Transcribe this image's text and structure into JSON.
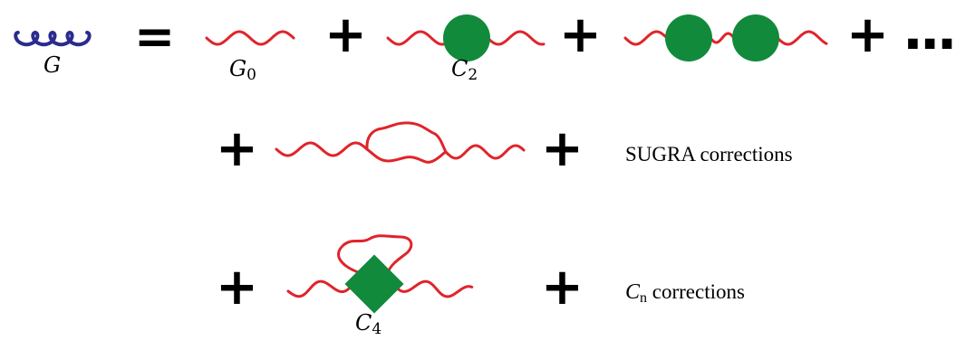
{
  "labels": {
    "full_propagator": "G",
    "free_propagator": "G",
    "free_propagator_sub": "0",
    "coupling_two": "C",
    "coupling_two_sub": "2",
    "coupling_four": "C",
    "coupling_four_sub": "4"
  },
  "operators": {
    "equals": "=",
    "plus": "+",
    "ellipsis": "..."
  },
  "corrections": {
    "sugra": "SUGRA corrections",
    "cn_symbol": "C",
    "cn_sub": "n",
    "cn_text": "corrections"
  },
  "colors": {
    "gluon_line": "#2b2b8f",
    "wavy_line": "#e0242b",
    "vertex": "#118a3c",
    "text": "#000000"
  }
}
